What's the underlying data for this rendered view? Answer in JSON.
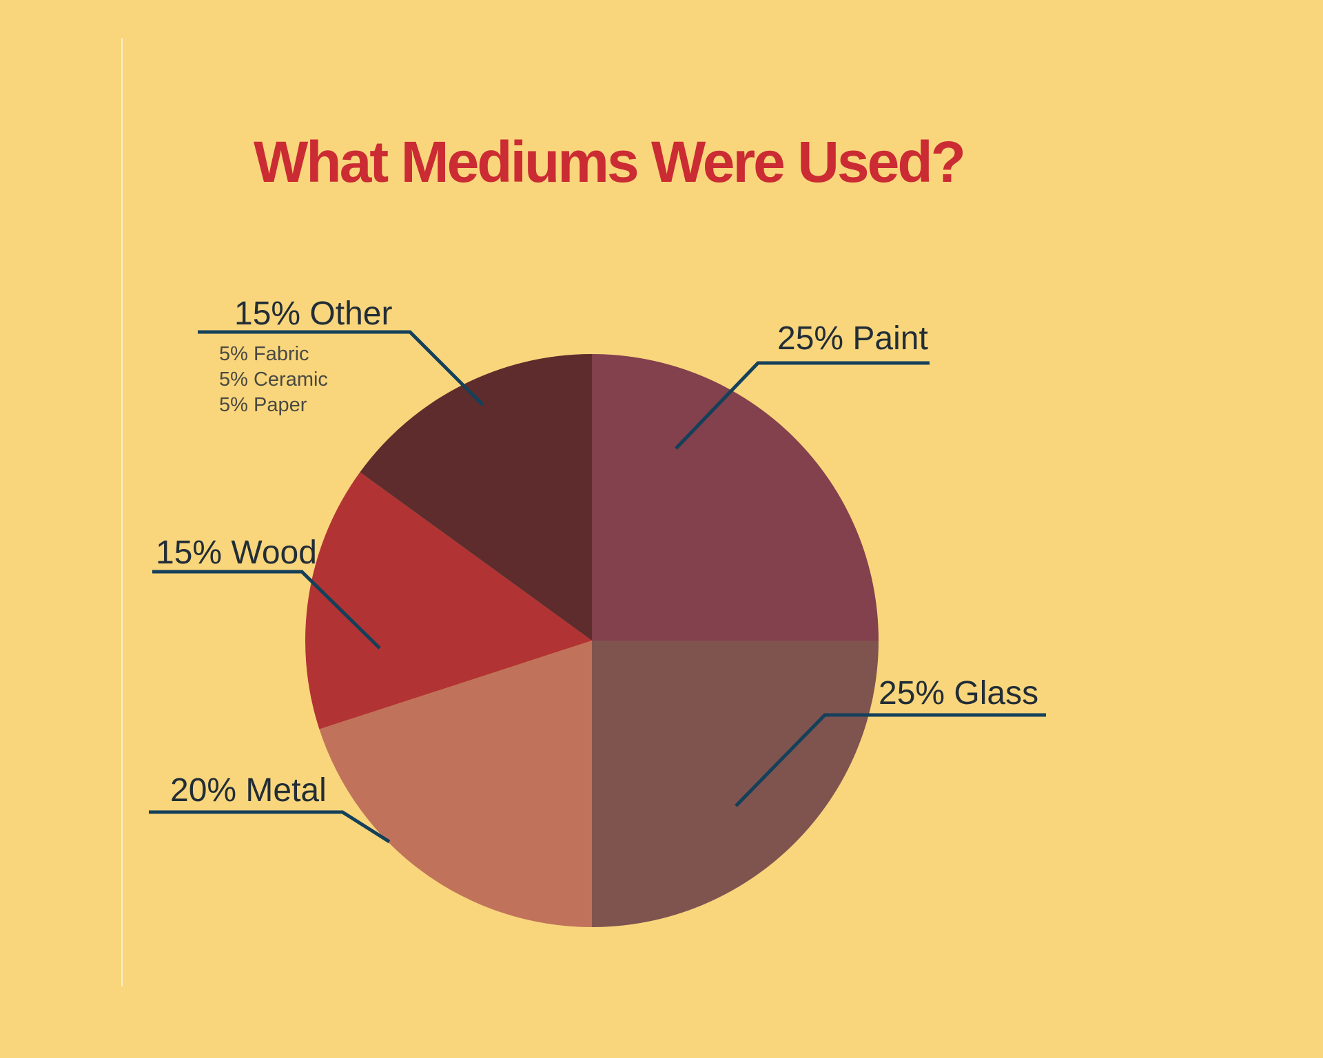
{
  "title": {
    "text": "What Mediums Were Used?"
  },
  "colors": {
    "background": "#F9D67C",
    "title_text": "#CB2B33",
    "leader_line": "#14405A",
    "label_text": "#222D36",
    "sublabel_text": "#4A4942",
    "margin_rule": "#F8EFCE"
  },
  "chart_data": {
    "type": "pie",
    "title": "What Mediums Were Used?",
    "direction": "clockwise",
    "start_angle_deg": 0,
    "legend_position": "callout-labels",
    "slices": [
      {
        "name": "Paint",
        "label": "25% Paint",
        "value": 25,
        "color": "#83404D"
      },
      {
        "name": "Glass",
        "label": "25% Glass",
        "value": 25,
        "color": "#7F544F"
      },
      {
        "name": "Metal",
        "label": "20% Metal",
        "value": 20,
        "color": "#C0735A"
      },
      {
        "name": "Wood",
        "label": "15% Wood",
        "value": 15,
        "color": "#B23334"
      },
      {
        "name": "Other",
        "label": "15% Other",
        "value": 15,
        "color": "#5E2C2C",
        "breakdown": [
          "5% Fabric",
          "5% Ceramic",
          "5% Paper"
        ]
      }
    ]
  }
}
